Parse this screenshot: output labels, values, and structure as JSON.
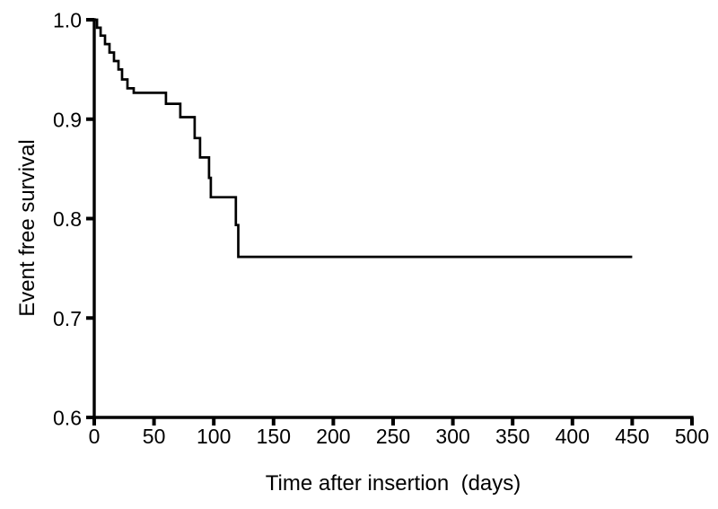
{
  "figure": {
    "background_color": "#ffffff",
    "foreground_color": "#000000"
  },
  "chart_data": {
    "type": "line",
    "subtype": "kaplan-meier-step-curve",
    "title": "",
    "xlabel": "Time after insertion  (days)",
    "ylabel": "Event free survival",
    "xlim": [
      0,
      500
    ],
    "ylim": [
      0.6,
      1.0
    ],
    "grid": false,
    "legend": null,
    "line_color": "#000000",
    "x_ticks": [
      {
        "value": 0,
        "label": "0"
      },
      {
        "value": 50,
        "label": "50"
      },
      {
        "value": 100,
        "label": "100"
      },
      {
        "value": 150,
        "label": "150"
      },
      {
        "value": 200,
        "label": "200"
      },
      {
        "value": 250,
        "label": "250"
      },
      {
        "value": 300,
        "label": "300"
      },
      {
        "value": 350,
        "label": "350"
      },
      {
        "value": 400,
        "label": "400"
      },
      {
        "value": 450,
        "label": "450"
      },
      {
        "value": 500,
        "label": "500"
      }
    ],
    "y_ticks": [
      {
        "value": 1.0,
        "label": "1.0"
      },
      {
        "value": 0.9,
        "label": "0.9"
      },
      {
        "value": 0.8,
        "label": "0.8"
      },
      {
        "value": 0.7,
        "label": "0.7"
      },
      {
        "value": 0.6,
        "label": "0.6"
      }
    ],
    "series": [
      {
        "name": "Event free survival",
        "point_keys": [
          "time_days",
          "survival"
        ],
        "points": [
          [
            0,
            1.0
          ],
          [
            2.3,
            0.992
          ],
          [
            5.3,
            0.984
          ],
          [
            9.0,
            0.9755
          ],
          [
            12.8,
            0.967
          ],
          [
            16.5,
            0.9585
          ],
          [
            20.3,
            0.95
          ],
          [
            23.3,
            0.94
          ],
          [
            27.8,
            0.931
          ],
          [
            33.0,
            0.9265
          ],
          [
            60.0,
            0.9155
          ],
          [
            72.0,
            0.902
          ],
          [
            84.0,
            0.881
          ],
          [
            88.5,
            0.8615
          ],
          [
            96.0,
            0.841
          ],
          [
            97.5,
            0.8215
          ],
          [
            118.5,
            0.7935
          ],
          [
            120.5,
            0.7615
          ],
          [
            450.0,
            0.7615
          ]
        ]
      }
    ]
  }
}
